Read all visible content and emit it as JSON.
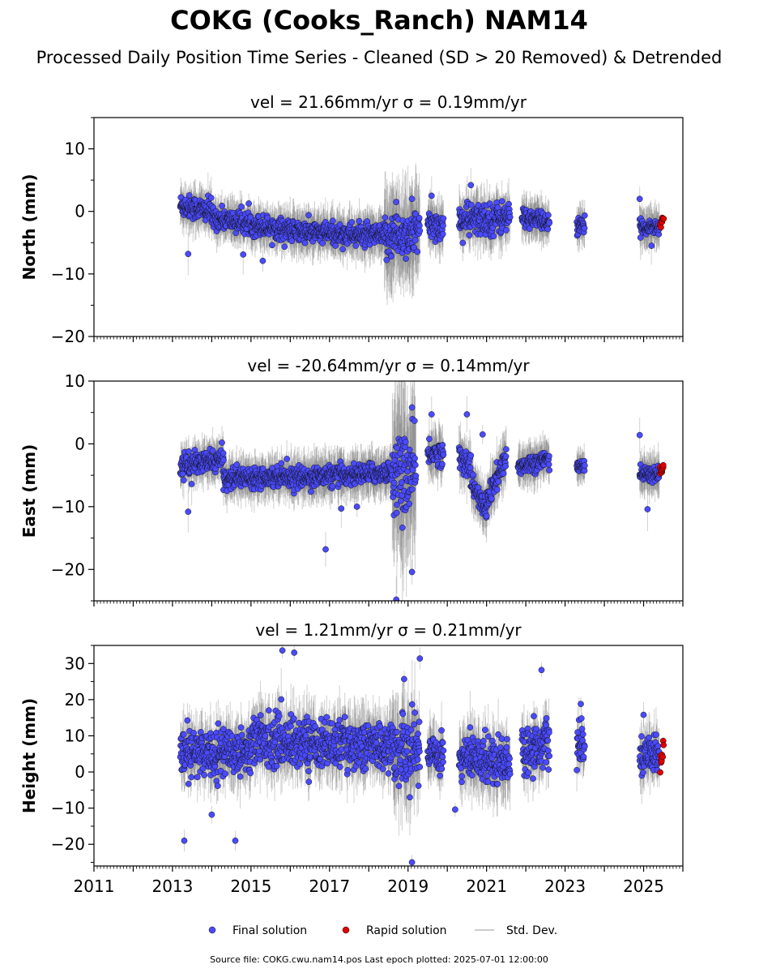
{
  "figure": {
    "title": "COKG (Cooks_Ranch) NAM14",
    "subtitle": "Processed Daily Position Time Series - Cleaned (SD > 20 Removed) & Detrended",
    "footer": "Source file: COKG.cwu.nam14.pos  Last epoch plotted: 2025-07-01 12:00:00"
  },
  "legend": {
    "placement": "bottom-center",
    "items": [
      {
        "label": "Final solution",
        "color": "#4a4aff"
      },
      {
        "label": "Rapid solution",
        "color": "#e00000"
      },
      {
        "label": "Std. Dev.",
        "color": "#bbbbbb"
      }
    ]
  },
  "chart_data": [
    {
      "type": "scatter",
      "title": "vel = 21.66mm/yr   σ = 0.19mm/yr",
      "ylabel": "North (mm)",
      "xlim": [
        2011,
        2026
      ],
      "ylim": [
        -20,
        15
      ],
      "yticks": [
        10,
        0,
        -10,
        -20
      ],
      "yticklabels": [
        "10",
        "0",
        "−10",
        "−20"
      ],
      "segments": [
        {
          "x": [
            2013.2,
            2014.0
          ],
          "y": [
            1.0,
            0.0
          ],
          "spread": 1.3,
          "sd": 2.5
        },
        {
          "x": [
            2014.0,
            2016.0
          ],
          "y": [
            -1.0,
            -3.0
          ],
          "spread": 1.2,
          "sd": 2.5
        },
        {
          "x": [
            2016.0,
            2018.4
          ],
          "y": [
            -3.2,
            -4.0
          ],
          "spread": 1.2,
          "sd": 2.8
        },
        {
          "x": [
            2018.4,
            2019.3
          ],
          "y": [
            -4.0,
            -3.5
          ],
          "spread": 2.6,
          "sd": 6.0
        },
        {
          "x": [
            2019.5,
            2019.9
          ],
          "y": [
            -2.0,
            -2.5
          ],
          "spread": 1.5,
          "sd": 3.0
        },
        {
          "x": [
            2020.3,
            2021.6
          ],
          "y": [
            -1.5,
            -1.0
          ],
          "spread": 1.8,
          "sd": 3.0
        },
        {
          "x": [
            2021.9,
            2022.6
          ],
          "y": [
            -0.8,
            -1.8
          ],
          "spread": 1.0,
          "sd": 2.5
        },
        {
          "x": [
            2023.3,
            2023.5
          ],
          "y": [
            -2.5,
            -2.5
          ],
          "spread": 1.0,
          "sd": 2.5
        },
        {
          "x": [
            2024.9,
            2025.4
          ],
          "y": [
            -2.5,
            -2.5
          ],
          "spread": 0.8,
          "sd": 2.5
        }
      ],
      "outliers": [
        [
          2013.4,
          -6.8
        ],
        [
          2014.8,
          -6.9
        ],
        [
          2015.3,
          -7.9
        ],
        [
          2018.7,
          1.5
        ],
        [
          2019.1,
          2.0
        ],
        [
          2019.6,
          2.5
        ],
        [
          2020.6,
          4.2
        ],
        [
          2024.9,
          2.0
        ],
        [
          2025.2,
          -5.5
        ]
      ],
      "rapid": {
        "x": [
          2025.42,
          2025.5
        ],
        "y": [
          -2.2,
          -1.2
        ],
        "spread": 0.5
      }
    },
    {
      "type": "scatter",
      "title": "vel = -20.64mm/yr   σ = 0.14mm/yr",
      "ylabel": "East (mm)",
      "xlim": [
        2011,
        2026
      ],
      "ylim": [
        -25,
        10
      ],
      "yticks": [
        10,
        0,
        -10,
        -20
      ],
      "yticklabels": [
        "10",
        "0",
        "−10",
        "−20"
      ],
      "segments": [
        {
          "x": [
            2013.2,
            2014.3
          ],
          "y": [
            -3.5,
            -2.5
          ],
          "spread": 1.2,
          "sd": 2.5
        },
        {
          "x": [
            2014.3,
            2016.0
          ],
          "y": [
            -5.5,
            -5.0
          ],
          "spread": 1.1,
          "sd": 2.5
        },
        {
          "x": [
            2016.0,
            2018.6
          ],
          "y": [
            -5.5,
            -4.5
          ],
          "spread": 1.1,
          "sd": 2.8
        },
        {
          "x": [
            2018.6,
            2019.2
          ],
          "y": [
            -5.0,
            -5.0
          ],
          "spread": 4.5,
          "sd": 10.0
        },
        {
          "x": [
            2019.5,
            2019.9
          ],
          "y": [
            -1.5,
            -1.5
          ],
          "spread": 1.3,
          "sd": 3.0
        },
        {
          "x": [
            2020.3,
            2020.6
          ],
          "y": [
            -2.5,
            -3.0
          ],
          "spread": 1.5,
          "sd": 3.0
        },
        {
          "x": [
            2020.6,
            2021.0
          ],
          "y": [
            -6.0,
            -11.0
          ],
          "spread": 1.2,
          "sd": 3.0
        },
        {
          "x": [
            2021.0,
            2021.5
          ],
          "y": [
            -9.0,
            -2.5
          ],
          "spread": 1.5,
          "sd": 3.0
        },
        {
          "x": [
            2021.8,
            2022.6
          ],
          "y": [
            -3.5,
            -2.5
          ],
          "spread": 1.0,
          "sd": 2.5
        },
        {
          "x": [
            2023.3,
            2023.5
          ],
          "y": [
            -3.5,
            -3.5
          ],
          "spread": 0.8,
          "sd": 2.0
        },
        {
          "x": [
            2024.9,
            2025.4
          ],
          "y": [
            -4.8,
            -4.8
          ],
          "spread": 0.8,
          "sd": 2.5
        }
      ],
      "outliers": [
        [
          2013.4,
          -10.8
        ],
        [
          2016.9,
          -16.8
        ],
        [
          2017.3,
          -10.3
        ],
        [
          2017.7,
          -10.0
        ],
        [
          2018.7,
          -24.8
        ],
        [
          2019.1,
          -20.4
        ],
        [
          2019.1,
          5.8
        ],
        [
          2019.6,
          4.7
        ],
        [
          2020.5,
          4.7
        ],
        [
          2020.9,
          1.5
        ],
        [
          2024.9,
          1.4
        ],
        [
          2025.1,
          -10.4
        ]
      ],
      "rapid": {
        "x": [
          2025.42,
          2025.5
        ],
        "y": [
          -4.5,
          -4.0
        ],
        "spread": 0.8
      }
    },
    {
      "type": "scatter",
      "title": "vel = 1.21mm/yr   σ = 0.21mm/yr",
      "ylabel": "Height (mm)",
      "xlim": [
        2011,
        2026
      ],
      "ylim": [
        -26,
        35
      ],
      "yticks": [
        30,
        20,
        10,
        0,
        -10,
        -20
      ],
      "yticklabels": [
        "30",
        "20",
        "10",
        "0",
        "−10",
        "−20"
      ],
      "segments": [
        {
          "x": [
            2013.2,
            2015.0
          ],
          "y": [
            5.0,
            6.0
          ],
          "spread": 4.5,
          "sd": 6.0
        },
        {
          "x": [
            2015.0,
            2016.5
          ],
          "y": [
            9.0,
            8.0
          ],
          "spread": 5.0,
          "sd": 6.5
        },
        {
          "x": [
            2016.5,
            2018.6
          ],
          "y": [
            8.0,
            7.0
          ],
          "spread": 4.5,
          "sd": 6.5
        },
        {
          "x": [
            2018.6,
            2019.3
          ],
          "y": [
            6.0,
            6.0
          ],
          "spread": 6.5,
          "sd": 10.0
        },
        {
          "x": [
            2019.5,
            2019.9
          ],
          "y": [
            6.0,
            5.0
          ],
          "spread": 4.0,
          "sd": 6.0
        },
        {
          "x": [
            2020.3,
            2021.6
          ],
          "y": [
            4.0,
            3.0
          ],
          "spread": 4.5,
          "sd": 7.0
        },
        {
          "x": [
            2021.9,
            2022.6
          ],
          "y": [
            6.0,
            8.0
          ],
          "spread": 4.5,
          "sd": 6.0
        },
        {
          "x": [
            2023.3,
            2023.5
          ],
          "y": [
            7.0,
            7.0
          ],
          "spread": 3.5,
          "sd": 5.0
        },
        {
          "x": [
            2024.9,
            2025.4
          ],
          "y": [
            4.0,
            5.0
          ],
          "spread": 3.5,
          "sd": 5.5
        }
      ],
      "outliers": [
        [
          2013.3,
          -19.0
        ],
        [
          2014.6,
          -19.0
        ],
        [
          2014.0,
          -11.8
        ],
        [
          2015.8,
          33.6
        ],
        [
          2016.1,
          33.0
        ],
        [
          2018.9,
          25.7
        ],
        [
          2019.3,
          31.4
        ],
        [
          2019.1,
          -25.0
        ],
        [
          2020.2,
          -10.4
        ],
        [
          2022.4,
          28.2
        ],
        [
          2023.4,
          18.8
        ],
        [
          2025.0,
          15.8
        ]
      ],
      "rapid": {
        "x": [
          2025.42,
          2025.5
        ],
        "y": [
          3.0,
          7.0
        ],
        "spread": 3.5
      }
    }
  ],
  "xaxis": {
    "ticks": [
      2011,
      2013,
      2015,
      2017,
      2019,
      2021,
      2023,
      2025
    ],
    "ticklabels": [
      "2011",
      "2013",
      "2015",
      "2017",
      "2019",
      "2021",
      "2023",
      "2025"
    ],
    "minor_per_year": 12
  }
}
